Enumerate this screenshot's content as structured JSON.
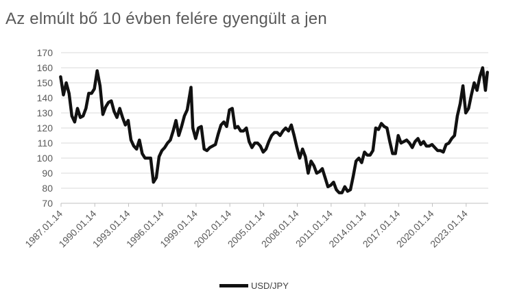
{
  "chart_data": {
    "type": "line",
    "title": "Az elmúlt bő 10 évben felére gyengült a jen",
    "xlabel": "",
    "ylabel": "",
    "ylim": [
      70,
      170
    ],
    "yticks": [
      "70",
      "80",
      "90",
      "100",
      "110",
      "120",
      "130",
      "140",
      "150",
      "160",
      "170"
    ],
    "xlim": [
      "1987.01.14",
      "2024.12.31"
    ],
    "xticks": [
      "1987.01.14",
      "1990.01.14",
      "1993.01.14",
      "1996.01.14",
      "1999.01.14",
      "2002.01.14",
      "2005.01.14",
      "2008.01.14",
      "2011.01.14",
      "2014.01.14",
      "2017.01.14",
      "2020.01.14",
      "2023.01.14"
    ],
    "grid": "horizontal",
    "legend": "bottom",
    "colors": {
      "line": "#111111",
      "grid": "#d9d9d9",
      "axis": "#bfbfbf"
    },
    "series": [
      {
        "name": "USD/JPY",
        "x": [
          "1987.01",
          "1987.04",
          "1987.07",
          "1987.10",
          "1988.01",
          "1988.04",
          "1988.07",
          "1988.10",
          "1989.01",
          "1989.04",
          "1989.07",
          "1989.10",
          "1990.01",
          "1990.04",
          "1990.07",
          "1990.10",
          "1991.01",
          "1991.04",
          "1991.07",
          "1991.10",
          "1992.01",
          "1992.04",
          "1992.07",
          "1992.10",
          "1993.01",
          "1993.04",
          "1993.07",
          "1993.10",
          "1994.01",
          "1994.04",
          "1994.07",
          "1994.10",
          "1995.01",
          "1995.04",
          "1995.07",
          "1995.10",
          "1996.01",
          "1996.04",
          "1996.07",
          "1996.10",
          "1997.01",
          "1997.04",
          "1997.07",
          "1997.10",
          "1998.01",
          "1998.04",
          "1998.08",
          "1998.10",
          "1999.01",
          "1999.04",
          "1999.07",
          "1999.10",
          "2000.01",
          "2000.04",
          "2000.07",
          "2000.10",
          "2001.01",
          "2001.04",
          "2001.07",
          "2001.10",
          "2002.01",
          "2002.04",
          "2002.07",
          "2002.10",
          "2003.01",
          "2003.04",
          "2003.07",
          "2003.10",
          "2004.01",
          "2004.04",
          "2004.07",
          "2004.10",
          "2005.01",
          "2005.04",
          "2005.07",
          "2005.10",
          "2006.01",
          "2006.04",
          "2006.07",
          "2006.10",
          "2007.01",
          "2007.04",
          "2007.07",
          "2007.10",
          "2008.01",
          "2008.04",
          "2008.07",
          "2008.10",
          "2009.01",
          "2009.04",
          "2009.07",
          "2009.10",
          "2010.01",
          "2010.04",
          "2010.07",
          "2010.10",
          "2011.01",
          "2011.04",
          "2011.07",
          "2011.10",
          "2012.01",
          "2012.04",
          "2012.07",
          "2012.10",
          "2013.01",
          "2013.04",
          "2013.07",
          "2013.10",
          "2014.01",
          "2014.04",
          "2014.07",
          "2014.10",
          "2015.01",
          "2015.04",
          "2015.07",
          "2015.10",
          "2016.01",
          "2016.04",
          "2016.07",
          "2016.10",
          "2017.01",
          "2017.04",
          "2017.07",
          "2017.10",
          "2018.01",
          "2018.04",
          "2018.07",
          "2018.10",
          "2019.01",
          "2019.04",
          "2019.07",
          "2019.10",
          "2020.01",
          "2020.04",
          "2020.07",
          "2020.10",
          "2021.01",
          "2021.04",
          "2021.07",
          "2021.10",
          "2022.01",
          "2022.04",
          "2022.07",
          "2022.10",
          "2023.01",
          "2023.04",
          "2023.07",
          "2023.10",
          "2024.01",
          "2024.04",
          "2024.07",
          "2024.10",
          "2024.12"
        ],
        "values": [
          154,
          142,
          150,
          143,
          128,
          124,
          133,
          127,
          128,
          133,
          143,
          143,
          146,
          158,
          148,
          129,
          134,
          137,
          138,
          131,
          127,
          133,
          127,
          122,
          125,
          112,
          108,
          106,
          112,
          103,
          100,
          100,
          100,
          84,
          87,
          101,
          105,
          107,
          110,
          112,
          118,
          125,
          115,
          121,
          128,
          132,
          147,
          120,
          113,
          120,
          121,
          106,
          105,
          107,
          108,
          109,
          116,
          122,
          124,
          121,
          132,
          133,
          120,
          121,
          118,
          118,
          120,
          111,
          107,
          110,
          110,
          108,
          104,
          106,
          111,
          115,
          117,
          117,
          115,
          118,
          120,
          118,
          122,
          115,
          107,
          100,
          106,
          101,
          90,
          98,
          95,
          90,
          91,
          93,
          87,
          81,
          82,
          84,
          79,
          77,
          77,
          81,
          78,
          79,
          88,
          98,
          100,
          97,
          104,
          102,
          102,
          105,
          120,
          119,
          123,
          121,
          120,
          111,
          103,
          103,
          115,
          110,
          111,
          112,
          110,
          107,
          111,
          113,
          109,
          111,
          108,
          108,
          109,
          107,
          105,
          105,
          104,
          109,
          110,
          113,
          115,
          128,
          136,
          148,
          130,
          133,
          142,
          150,
          145,
          154,
          160,
          145,
          157
        ]
      }
    ]
  }
}
